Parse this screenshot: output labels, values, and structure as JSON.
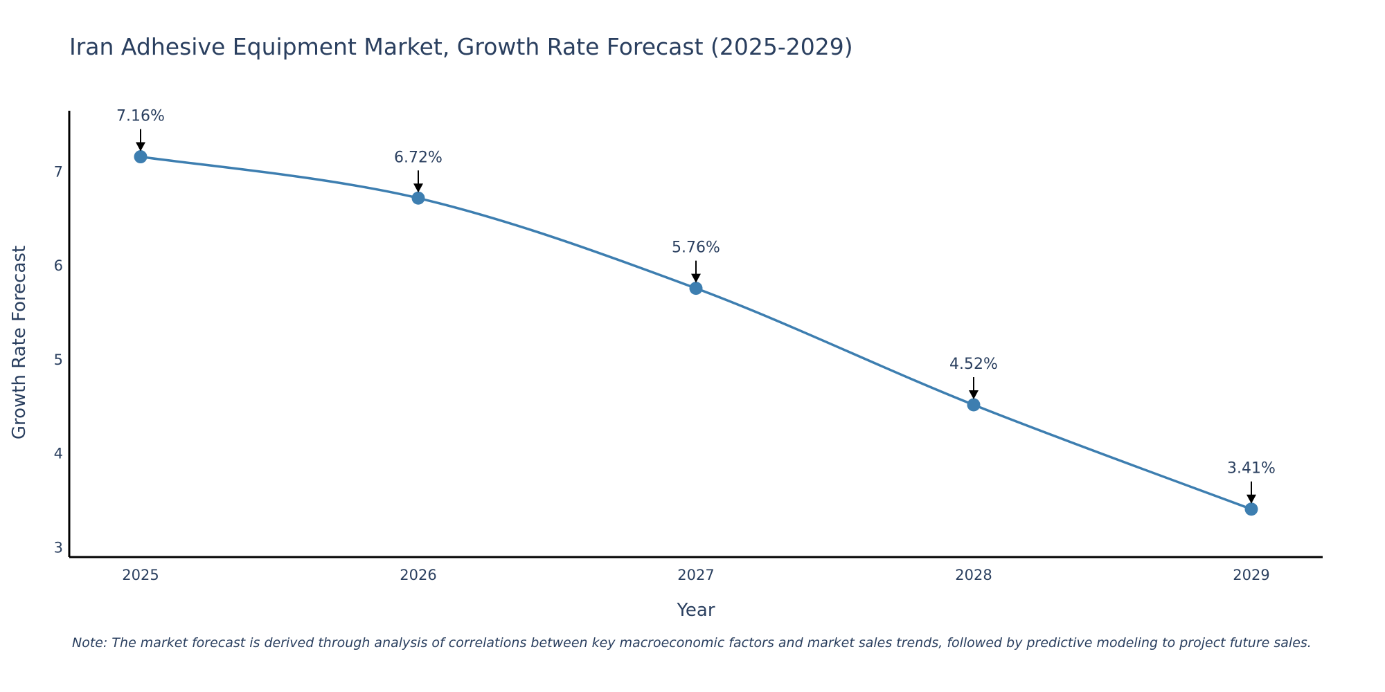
{
  "chart_data": {
    "type": "line",
    "title": "Iran Adhesive Equipment Market, Growth Rate Forecast (2025-2029)",
    "xlabel": "Year",
    "ylabel": "Growth Rate Forecast",
    "categories": [
      "2025",
      "2026",
      "2027",
      "2028",
      "2029"
    ],
    "values": [
      7.16,
      6.72,
      5.76,
      4.52,
      3.41
    ],
    "data_labels": [
      "7.16%",
      "6.72%",
      "5.76%",
      "4.52%",
      "3.41%"
    ],
    "yticks": [
      3,
      4,
      5,
      6,
      7
    ],
    "ylim": [
      2.9,
      7.65
    ],
    "grid": false,
    "line_color": "#3d7eb0",
    "marker_color": "#3d7eb0",
    "line_shape": "spline"
  },
  "note": "Note: The market forecast is derived through analysis of correlations between key macroeconomic factors and market sales trends, followed by predictive modeling to project future sales."
}
